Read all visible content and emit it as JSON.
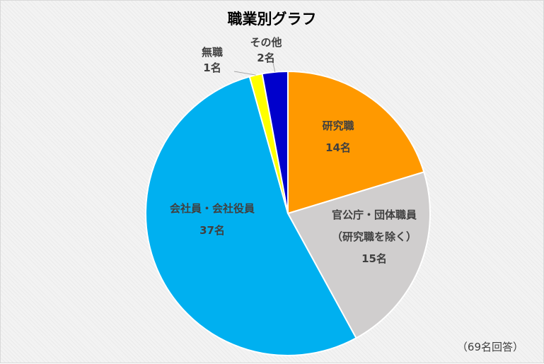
{
  "chart_data": {
    "type": "pie",
    "title": "職業別グラフ",
    "total_note": "（69名回答）",
    "slices": [
      {
        "label": "研究職",
        "count_label": "14名",
        "value": 14,
        "color": "#ff9900"
      },
      {
        "label": "官公庁・団体職員",
        "sublabel": "（研究職を除く）",
        "count_label": "15名",
        "value": 15,
        "color": "#d0cece"
      },
      {
        "label": "会社員・会社役員",
        "count_label": "37名",
        "value": 37,
        "color": "#00b0f0"
      },
      {
        "label": "無職",
        "count_label": "1名",
        "value": 1,
        "color": "#ffff00"
      },
      {
        "label": "その他",
        "count_label": "2名",
        "value": 2,
        "color": "#0000cc"
      }
    ]
  }
}
